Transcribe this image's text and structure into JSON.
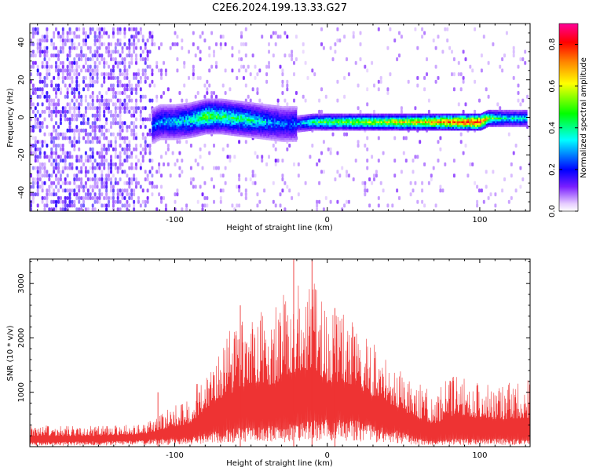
{
  "title": "C2E6.2024.199.13.33.G27",
  "chart_data": [
    {
      "type": "heatmap",
      "title": "C2E6.2024.199.13.33.G27",
      "xlabel": "Height of straight line (km)",
      "ylabel": "Frequency (Hz)",
      "xlim": [
        -195,
        133
      ],
      "ylim": [
        -50,
        50
      ],
      "x_ticks": [
        -100,
        0,
        100
      ],
      "y_ticks": [
        -40,
        -20,
        0,
        20,
        40
      ],
      "colorbar": {
        "label": "Normalized spectral amplitude",
        "range": [
          0,
          0.9
        ],
        "ticks": [
          0.0,
          0.2,
          0.4,
          0.6,
          0.8
        ],
        "colormap": [
          "#e6ccff",
          "#7a1fff",
          "#0000ff",
          "#00ffff",
          "#00ff00",
          "#ffff00",
          "#ff8000",
          "#ff0000",
          "#ff0099"
        ]
      },
      "ridge": [
        {
          "x": -115,
          "y": -4,
          "amp": 0.3
        },
        {
          "x": -110,
          "y": -2,
          "amp": 0.32
        },
        {
          "x": -100,
          "y": -2,
          "amp": 0.35
        },
        {
          "x": -90,
          "y": -1,
          "amp": 0.4
        },
        {
          "x": -80,
          "y": 1,
          "amp": 0.5
        },
        {
          "x": -70,
          "y": 1,
          "amp": 0.45
        },
        {
          "x": -60,
          "y": 0,
          "amp": 0.45
        },
        {
          "x": -50,
          "y": -1,
          "amp": 0.4
        },
        {
          "x": -40,
          "y": -2,
          "amp": 0.35
        },
        {
          "x": -30,
          "y": -3,
          "amp": 0.3
        },
        {
          "x": -20,
          "y": -3,
          "amp": 0.3
        },
        {
          "x": -10,
          "y": -2,
          "amp": 0.45
        },
        {
          "x": 0,
          "y": -2,
          "amp": 0.5
        },
        {
          "x": 10,
          "y": -2,
          "amp": 0.5
        },
        {
          "x": 20,
          "y": -2,
          "amp": 0.55
        },
        {
          "x": 40,
          "y": -2,
          "amp": 0.6
        },
        {
          "x": 60,
          "y": -2,
          "amp": 0.65
        },
        {
          "x": 80,
          "y": -2,
          "amp": 0.75
        },
        {
          "x": 95,
          "y": -2,
          "amp": 0.85
        },
        {
          "x": 100,
          "y": -2,
          "amp": 0.85
        },
        {
          "x": 105,
          "y": 0,
          "amp": 0.55
        },
        {
          "x": 115,
          "y": 0,
          "amp": 0.4
        },
        {
          "x": 130,
          "y": 0,
          "amp": 0.4
        }
      ]
    },
    {
      "type": "line",
      "xlabel": "Height of straight line (km)",
      "ylabel": "SNR (10 * v/v)",
      "xlim": [
        -195,
        133
      ],
      "ylim": [
        0,
        3450
      ],
      "x_ticks": [
        -100,
        0,
        100
      ],
      "y_ticks": [
        1000,
        2000,
        3000
      ],
      "color": "#ee3333",
      "envelope": [
        {
          "x": -195,
          "lo": 80,
          "hi": 400
        },
        {
          "x": -150,
          "lo": 100,
          "hi": 380
        },
        {
          "x": -120,
          "lo": 120,
          "hi": 430
        },
        {
          "x": -110,
          "lo": 150,
          "hi": 600
        },
        {
          "x": -90,
          "lo": 170,
          "hi": 900
        },
        {
          "x": -80,
          "lo": 250,
          "hi": 1500
        },
        {
          "x": -70,
          "lo": 300,
          "hi": 2000
        },
        {
          "x": -55,
          "lo": 350,
          "hi": 2400
        },
        {
          "x": -45,
          "lo": 380,
          "hi": 2600
        },
        {
          "x": -35,
          "lo": 400,
          "hi": 2500
        },
        {
          "x": -25,
          "lo": 420,
          "hi": 3100
        },
        {
          "x": -15,
          "lo": 450,
          "hi": 3000
        },
        {
          "x": -8,
          "lo": 500,
          "hi": 3200
        },
        {
          "x": 0,
          "lo": 500,
          "hi": 2400
        },
        {
          "x": 10,
          "lo": 500,
          "hi": 2500
        },
        {
          "x": 20,
          "lo": 480,
          "hi": 2200
        },
        {
          "x": 30,
          "lo": 400,
          "hi": 1900
        },
        {
          "x": 45,
          "lo": 300,
          "hi": 1500
        },
        {
          "x": 60,
          "lo": 150,
          "hi": 1200
        },
        {
          "x": 70,
          "lo": 100,
          "hi": 1000
        },
        {
          "x": 85,
          "lo": 150,
          "hi": 1450
        },
        {
          "x": 100,
          "lo": 150,
          "hi": 1200
        },
        {
          "x": 115,
          "lo": 150,
          "hi": 1150
        },
        {
          "x": 133,
          "lo": 150,
          "hi": 1250
        }
      ],
      "spikes": [
        {
          "x": -111,
          "value": 1000
        },
        {
          "x": -57,
          "value": 2600
        },
        {
          "x": -22,
          "value": 3450
        },
        {
          "x": -10,
          "value": 3450
        },
        {
          "x": 5,
          "value": 2550
        }
      ]
    }
  ]
}
